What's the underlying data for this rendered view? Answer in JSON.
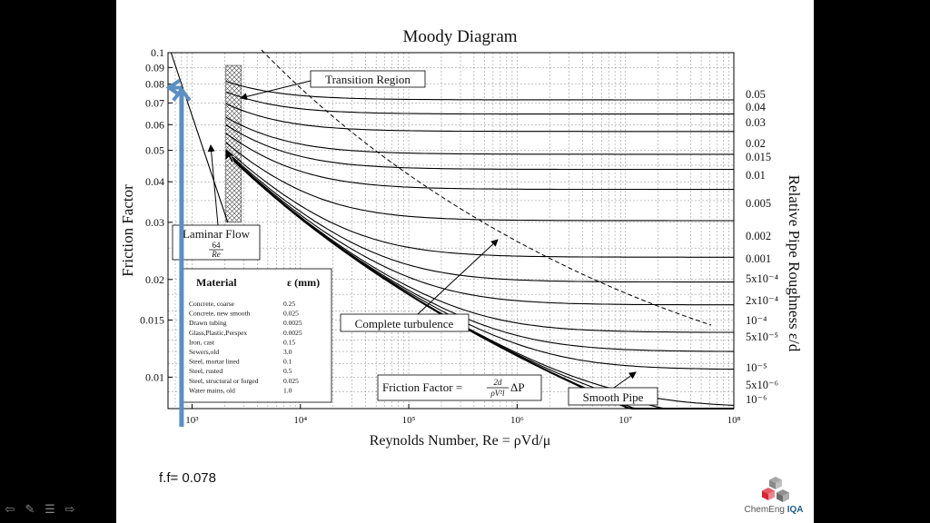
{
  "slide": {
    "caption": "f.f= 0.078",
    "logo": {
      "name": "ChemEng",
      "accent": "IQA",
      "accent_color": "#1c5c8c",
      "cube_colors": [
        "#8a8a8a",
        "#d9232f",
        "#6c6c6c"
      ]
    },
    "nav": [
      "back-arrow-icon",
      "pen-icon",
      "menu-icon",
      "forward-arrow-icon"
    ]
  },
  "chart_data": {
    "type": "line",
    "title": "Moody Diagram",
    "xlabel": "Reynolds Number, Re = ρVd/μ",
    "ylabel": "Friction Factor",
    "right_label": "Relative Pipe Roughness ε/d",
    "x_scale": "log",
    "y_scale": "log",
    "xlim": [
      600,
      100000000
    ],
    "ylim": [
      0.008,
      0.1
    ],
    "x_ticks": [
      {
        "value": 1000,
        "label": "10³"
      },
      {
        "value": 10000,
        "label": "10⁴"
      },
      {
        "value": 100000,
        "label": "10⁵"
      },
      {
        "value": 1000000,
        "label": "10⁶"
      },
      {
        "value": 10000000,
        "label": "10⁷"
      },
      {
        "value": 100000000,
        "label": "10⁸"
      }
    ],
    "y_ticks": [
      {
        "value": 0.1,
        "label": "0.1"
      },
      {
        "value": 0.09,
        "label": "0.09"
      },
      {
        "value": 0.08,
        "label": "0.08"
      },
      {
        "value": 0.07,
        "label": "0.07"
      },
      {
        "value": 0.06,
        "label": "0.06"
      },
      {
        "value": 0.05,
        "label": "0.05"
      },
      {
        "value": 0.04,
        "label": "0.04"
      },
      {
        "value": 0.03,
        "label": "0.03"
      },
      {
        "value": 0.02,
        "label": "0.02"
      },
      {
        "value": 0.015,
        "label": "0.015"
      },
      {
        "value": 0.01,
        "label": "0.01"
      }
    ],
    "grid": true,
    "series": [
      {
        "name": "0.05",
        "values": [
          0.0716,
          0.0716
        ]
      },
      {
        "name": "0.04",
        "values": [
          0.0649,
          0.0649
        ]
      },
      {
        "name": "0.03",
        "values": [
          0.0571,
          0.0571
        ]
      },
      {
        "name": "0.02",
        "values": [
          0.0491,
          0.0491
        ]
      },
      {
        "name": "0.015",
        "values": [
          0.0438,
          0.0438
        ]
      },
      {
        "name": "0.01",
        "values": [
          0.038,
          0.038
        ]
      },
      {
        "name": "0.005",
        "values": [
          0.0304,
          0.0304
        ]
      },
      {
        "name": "0.002",
        "values": [
          0.0235,
          0.0235
        ]
      },
      {
        "name": "0.001",
        "values": [
          0.0197,
          0.0197
        ]
      },
      {
        "name": "5x10⁻⁴",
        "values": [
          0.0167,
          0.0167
        ]
      },
      {
        "name": "2x10⁻⁴",
        "values": [
          0.0137,
          0.0137
        ]
      },
      {
        "name": "10⁻⁴",
        "values": [
          0.012,
          0.012
        ]
      },
      {
        "name": "5x10⁻⁵",
        "values": [
          0.0105,
          0.0105
        ]
      },
      {
        "name": "10⁻⁵",
        "values": [
          0.0085,
          0.0085
        ]
      },
      {
        "name": "5x10⁻⁶",
        "values": [
          0.0079,
          0.0079
        ]
      },
      {
        "name": "10⁻⁶",
        "values": [
          0.0075,
          0.0075
        ]
      }
    ],
    "annotations": [
      {
        "name": "transition-region",
        "text": "Transition Region"
      },
      {
        "name": "laminar-flow",
        "text": "Laminar Flow",
        "formula_num": "64",
        "formula_den": "Re"
      },
      {
        "name": "complete-turbulence",
        "text": "Complete turbulence"
      },
      {
        "name": "smooth-pipe",
        "text": "Smooth Pipe"
      },
      {
        "name": "friction-factor-formula",
        "text": "Friction Factor = ",
        "num": "2d",
        "den": "ρV²l",
        "tail": "ΔP"
      }
    ],
    "highlight": {
      "re": 800,
      "f": 0.078,
      "color": "#5b8ec4"
    },
    "material_table": {
      "headers": [
        "Material",
        "ε (mm)"
      ],
      "rows": [
        [
          "Concrete, coarse",
          "0.25"
        ],
        [
          "Concrete, new smooth",
          "0.025"
        ],
        [
          "Drawn tubing",
          "0.0025"
        ],
        [
          "Glass,Plastic,Perspex",
          "0.0025"
        ],
        [
          "Iron, cast",
          "0.15"
        ],
        [
          "Sewers,old",
          "3.0"
        ],
        [
          "Steel, mortar lined",
          "0.1"
        ],
        [
          "Steel, rusted",
          "0.5"
        ],
        [
          "Steel, structural or forged",
          "0.025"
        ],
        [
          "Water mains, old",
          "1.0"
        ]
      ]
    }
  }
}
